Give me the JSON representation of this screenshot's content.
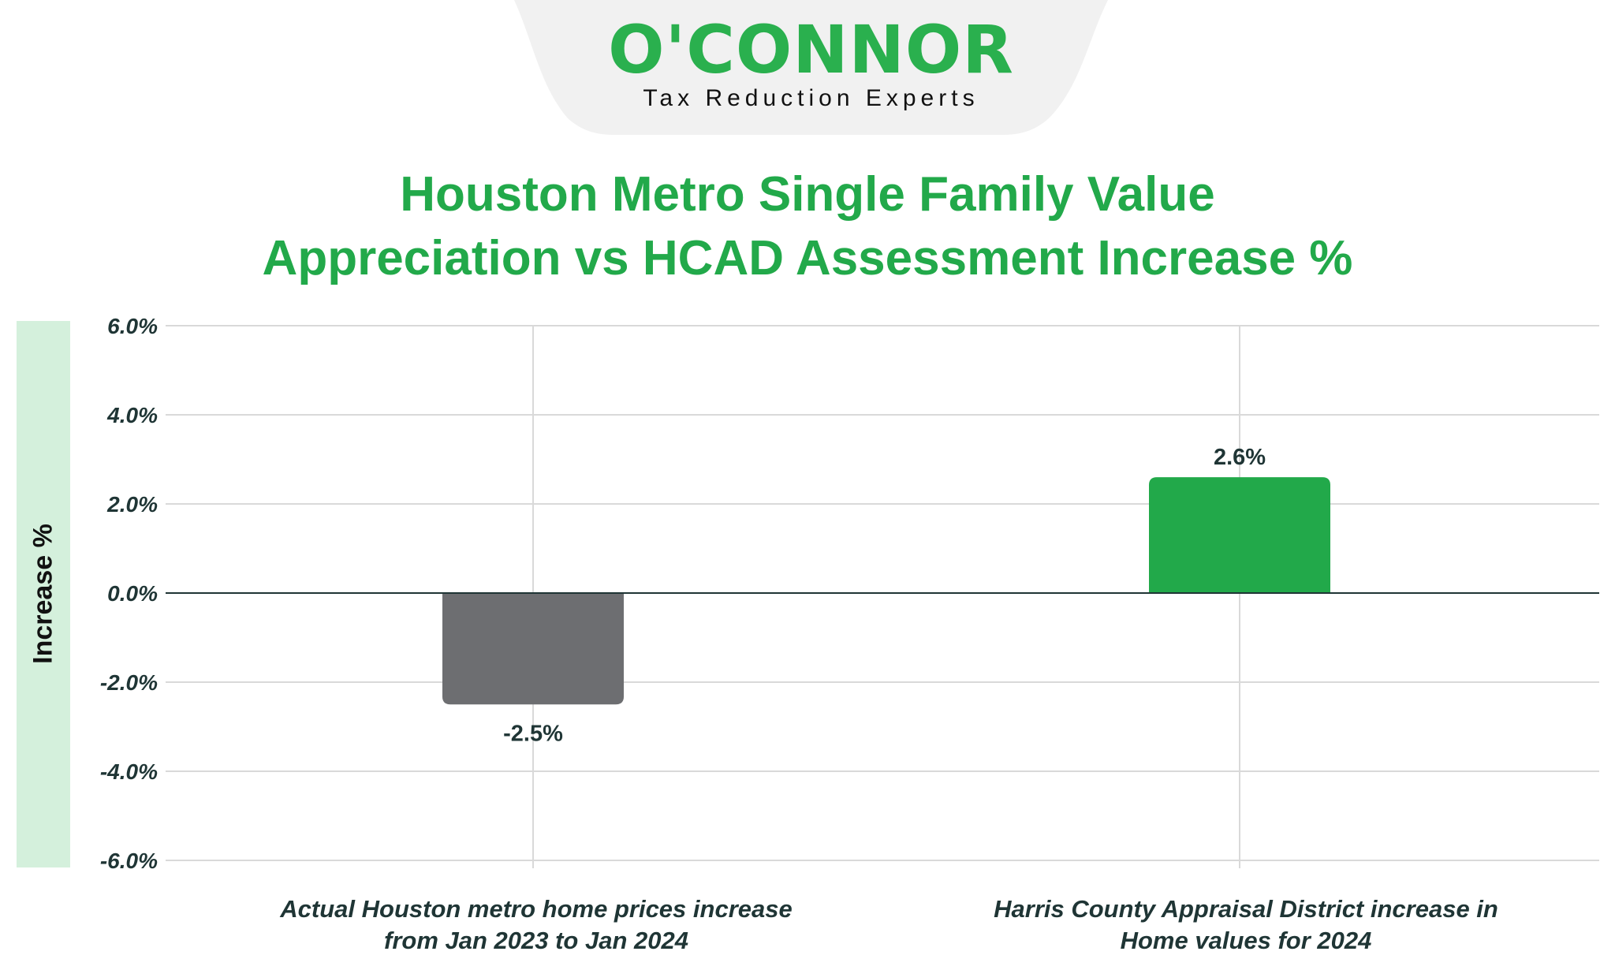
{
  "logo": {
    "name": "O'CONNOR",
    "tagline": "Tax Reduction Experts"
  },
  "colors": {
    "brand_green": "#22a94a",
    "bar_negative": "#6d6e71",
    "axis_strip": "#d4f0dc"
  },
  "chart_data": {
    "type": "bar",
    "title": [
      "Houston Metro Single Family Value",
      "Appreciation vs HCAD Assessment Increase %"
    ],
    "ylabel": "Increase %",
    "xlabel": "",
    "categories": [
      [
        "Actual Houston metro home prices increase",
        "from Jan 2023 to Jan 2024"
      ],
      [
        "Harris County Appraisal District increase in",
        "Home values for 2024"
      ]
    ],
    "values": [
      -2.5,
      2.6
    ],
    "data_labels": [
      "-2.5%",
      "2.6%"
    ],
    "bar_colors": [
      "#6d6e71",
      "#22a94a"
    ],
    "ylim": [
      -6,
      6
    ],
    "yticks": [
      6,
      4,
      2,
      0,
      -2,
      -4,
      -6
    ],
    "ytick_labels": [
      "6.0%",
      "4.0%",
      "2.0%",
      "0.0%",
      "-2.0%",
      "-4.0%",
      "-6.0%"
    ],
    "grid": true,
    "legend": "none"
  }
}
